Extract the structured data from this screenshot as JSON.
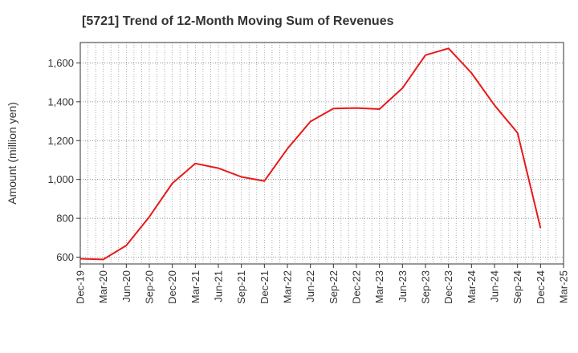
{
  "chart_data": {
    "type": "line",
    "title": "[5721]  Trend of 12-Month Moving Sum of Revenues",
    "xlabel": "",
    "ylabel": "Amount (million yen)",
    "categories": [
      "Dec-19",
      "Mar-20",
      "Jun-20",
      "Sep-20",
      "Dec-20",
      "Mar-21",
      "Jun-21",
      "Sep-21",
      "Dec-21",
      "Mar-22",
      "Jun-22",
      "Sep-22",
      "Dec-22",
      "Mar-23",
      "Jun-23",
      "Sep-23",
      "Dec-23",
      "Mar-24",
      "Jun-24",
      "Sep-24",
      "Dec-24",
      "Mar-25"
    ],
    "series": [
      {
        "values": [
          592,
          588,
          660,
          808,
          980,
          1082,
          1058,
          1013,
          992,
          1158,
          1298,
          1365,
          1368,
          1362,
          1470,
          1640,
          1675,
          1548,
          1382,
          1240,
          750,
          null
        ],
        "color": "#e8191a"
      }
    ],
    "ylim": [
      565,
      1705
    ],
    "yticks": [
      600,
      800,
      1000,
      1200,
      1400,
      1600
    ],
    "ytick_labels": [
      "600",
      "800",
      "1,000",
      "1,200",
      "1,400",
      "1,600"
    ],
    "grid": true
  }
}
